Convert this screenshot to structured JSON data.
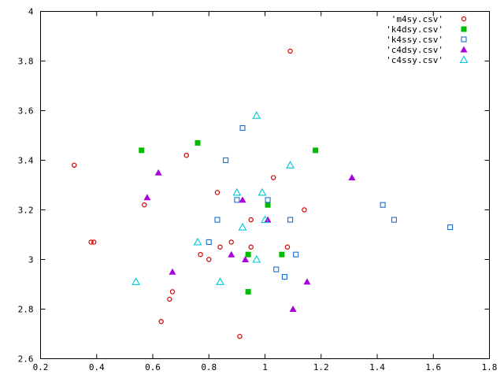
{
  "chart_data": {
    "type": "scatter",
    "title": "",
    "xlabel": "",
    "ylabel": "",
    "xlim": [
      0.2,
      1.8
    ],
    "ylim": [
      2.6,
      4.0
    ],
    "x_ticks": [
      "0.2",
      "0.4",
      "0.6",
      "0.8",
      "1",
      "1.2",
      "1.4",
      "1.6",
      "1.8"
    ],
    "y_ticks": [
      "2.6",
      "2.8",
      "3",
      "3.2",
      "3.4",
      "3.6",
      "3.8",
      "4"
    ],
    "grid": false,
    "legend_position": "top-right",
    "series": [
      {
        "name": "'m4sy.csv'",
        "marker": "open-circle",
        "color": "#cc0000",
        "points": [
          [
            0.32,
            3.38
          ],
          [
            0.38,
            3.07
          ],
          [
            0.39,
            3.07
          ],
          [
            0.57,
            3.22
          ],
          [
            0.63,
            2.75
          ],
          [
            0.66,
            2.84
          ],
          [
            0.67,
            2.87
          ],
          [
            0.72,
            3.42
          ],
          [
            0.77,
            3.02
          ],
          [
            0.8,
            3.0
          ],
          [
            0.83,
            3.27
          ],
          [
            0.84,
            3.05
          ],
          [
            0.88,
            3.07
          ],
          [
            0.91,
            2.69
          ],
          [
            0.95,
            3.16
          ],
          [
            0.95,
            3.05
          ],
          [
            1.03,
            3.33
          ],
          [
            1.08,
            3.05
          ],
          [
            1.09,
            3.84
          ],
          [
            1.14,
            3.2
          ]
        ]
      },
      {
        "name": "'k4dsy.csv'",
        "marker": "filled-square",
        "color": "#00bb00",
        "points": [
          [
            0.56,
            3.44
          ],
          [
            0.76,
            3.47
          ],
          [
            0.94,
            2.87
          ],
          [
            0.94,
            3.02
          ],
          [
            1.01,
            3.22
          ],
          [
            1.06,
            3.02
          ],
          [
            1.18,
            3.44
          ]
        ]
      },
      {
        "name": "'k4ssy.csv'",
        "marker": "open-square",
        "color": "#1a6fd1",
        "points": [
          [
            0.8,
            3.07
          ],
          [
            0.83,
            3.16
          ],
          [
            0.86,
            3.4
          ],
          [
            0.9,
            3.24
          ],
          [
            0.92,
            3.53
          ],
          [
            1.01,
            3.24
          ],
          [
            1.04,
            2.96
          ],
          [
            1.07,
            2.93
          ],
          [
            1.09,
            3.16
          ],
          [
            1.11,
            3.02
          ],
          [
            1.42,
            3.22
          ],
          [
            1.46,
            3.16
          ],
          [
            1.66,
            3.13
          ]
        ]
      },
      {
        "name": "'c4dsy.csv'",
        "marker": "filled-triangle",
        "color": "#aa00dd",
        "points": [
          [
            0.58,
            3.25
          ],
          [
            0.62,
            3.35
          ],
          [
            0.67,
            2.95
          ],
          [
            0.88,
            3.02
          ],
          [
            0.92,
            3.24
          ],
          [
            0.93,
            3.0
          ],
          [
            1.01,
            3.16
          ],
          [
            1.1,
            2.8
          ],
          [
            1.15,
            2.91
          ],
          [
            1.31,
            3.33
          ]
        ]
      },
      {
        "name": "'c4ssy.csv'",
        "marker": "open-triangle",
        "color": "#00c8d8",
        "points": [
          [
            0.54,
            2.91
          ],
          [
            0.76,
            3.07
          ],
          [
            0.84,
            2.91
          ],
          [
            0.9,
            3.27
          ],
          [
            0.92,
            3.13
          ],
          [
            0.97,
            3.58
          ],
          [
            0.97,
            3.0
          ],
          [
            0.99,
            3.27
          ],
          [
            1.0,
            3.16
          ],
          [
            1.09,
            3.38
          ]
        ]
      }
    ]
  }
}
